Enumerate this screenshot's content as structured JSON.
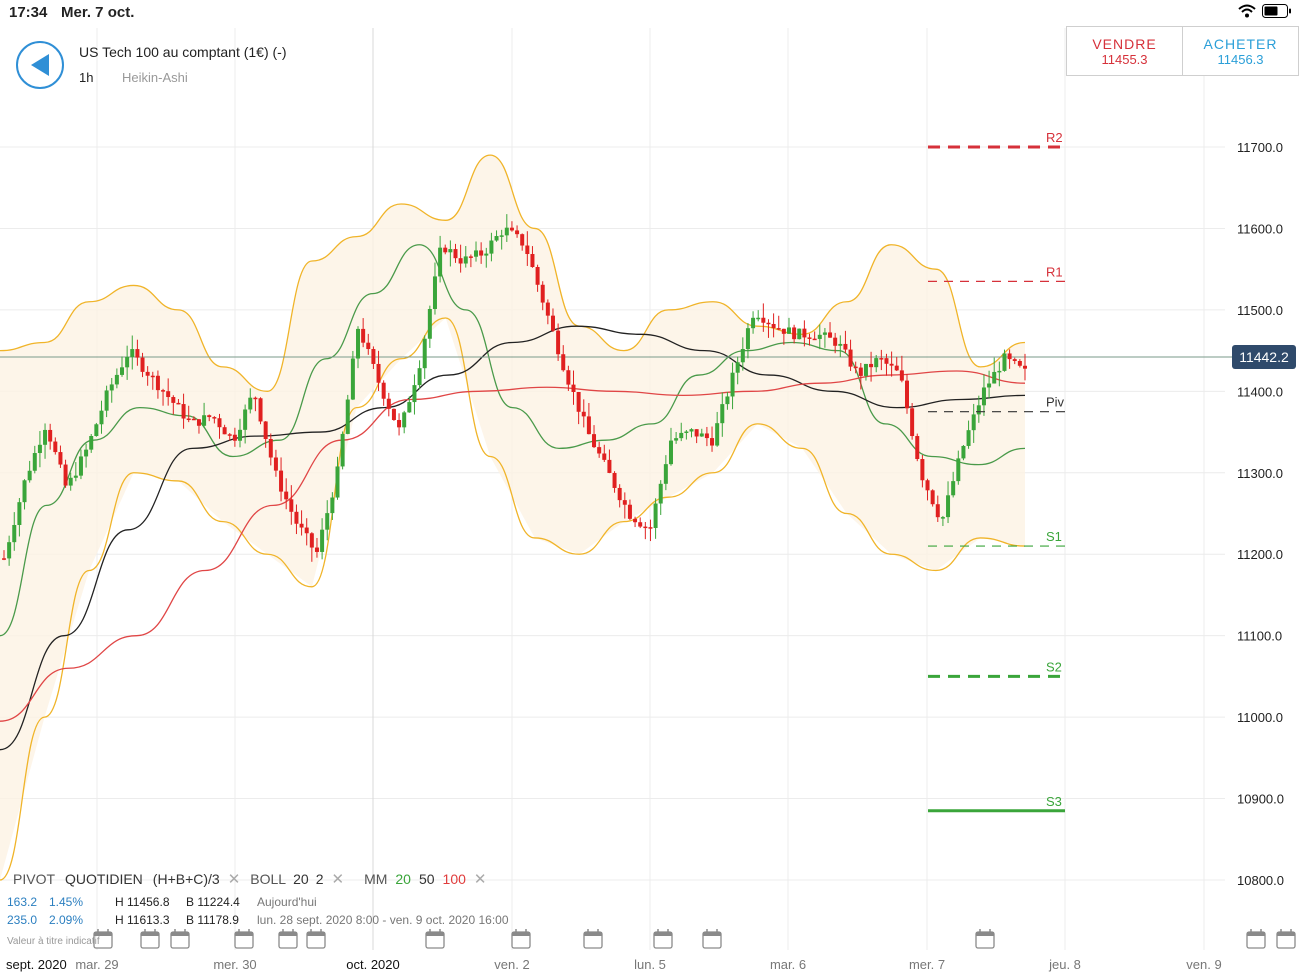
{
  "status": {
    "time": "17:34",
    "date": "Mer. 7 oct."
  },
  "instrument": {
    "title": "US Tech 100 au comptant (1€) (-)",
    "timeframe": "1h",
    "chart_type": "Heikin-Ashi"
  },
  "trade": {
    "sell_label": "VENDRE",
    "sell_price": "11455.3",
    "buy_label": "ACHETER",
    "buy_price": "11456.3"
  },
  "current_price": "11442.2",
  "pivot_levels": [
    {
      "label": "R2",
      "value": 11700,
      "color": "#d6313a",
      "style": "bold-dash"
    },
    {
      "label": "R1",
      "value": 11535,
      "color": "#d6313a",
      "style": "dash"
    },
    {
      "label": "Piv",
      "value": 11375,
      "color": "#333333",
      "style": "dash"
    },
    {
      "label": "S1",
      "value": 11210,
      "color": "#3aa53a",
      "style": "dash"
    },
    {
      "label": "S2",
      "value": 11050,
      "color": "#3aa53a",
      "style": "bold-dash"
    },
    {
      "label": "S3",
      "value": 10885,
      "color": "#3aa53a",
      "style": "solid"
    }
  ],
  "legend": {
    "pivot": "PIVOT",
    "pivot_type": "QUOTIDIEN",
    "pivot_formula": "(H+B+C)/3",
    "boll": "BOLL",
    "boll_period": "20",
    "boll_dev": "2",
    "mm": "MM",
    "mm20": "20",
    "mm50": "50",
    "mm100": "100",
    "row2": {
      "pts": "163.2",
      "pct": "1.45%",
      "high": "H 11456.8",
      "low": "B 11224.4",
      "period": "Aujourd'hui"
    },
    "row3": {
      "pts": "235.0",
      "pct": "2.09%",
      "high": "H 11613.3",
      "low": "B 11178.9",
      "period": "lun. 28 sept. 2020 8:00 - ven. 9 oct. 2020 16:00"
    }
  },
  "notice": "Valeur à titre indicatif",
  "colors": {
    "up": "#3aa53a",
    "down": "#e02020",
    "boll": "#f0b429",
    "mm20": "#4a9a4a",
    "mm50": "#222222",
    "mm100": "#e04646",
    "accent": "#2f8fd6"
  },
  "chart_data": {
    "type": "candlestick",
    "y_ticks": [
      "11700.0",
      "11600.0",
      "11500.0",
      "11400.0",
      "11300.0",
      "11200.0",
      "11100.0",
      "11000.0",
      "10900.0",
      "10800.0"
    ],
    "y_range": [
      10770,
      11830
    ],
    "x_labels": [
      "sept. 2020",
      "mar. 29",
      "mer. 30",
      "oct. 2020",
      "ven. 2",
      "lun. 5",
      "mar. 6",
      "mer. 7",
      "jeu. 8",
      "ven. 9"
    ],
    "close_path": [
      11195,
      11290,
      11360,
      11280,
      11330,
      11400,
      11450,
      11420,
      11390,
      11360,
      11370,
      11340,
      11400,
      11300,
      11240,
      11200,
      11300,
      11480,
      11410,
      11350,
      11440,
      11580,
      11560,
      11570,
      11600,
      11580,
      11500,
      11420,
      11350,
      11300,
      11250,
      11230,
      11340,
      11350,
      11340,
      11420,
      11500,
      11480,
      11470,
      11470,
      11460,
      11420,
      11440,
      11420,
      11300,
      11240,
      11330,
      11400,
      11440,
      11423
    ],
    "series_lines": {
      "bb_upper": [
        11450,
        11460,
        11510,
        11530,
        11500,
        11430,
        11400,
        11560,
        11590,
        11630,
        11610,
        11690,
        11600,
        11480,
        11450,
        11500,
        11510,
        11480,
        11470,
        11510,
        11580,
        11550,
        11430,
        11460
      ],
      "bb_lower": [
        10800,
        11000,
        11180,
        11300,
        11290,
        11240,
        11200,
        11160,
        11380,
        11440,
        11490,
        11320,
        11220,
        11200,
        11240,
        11270,
        11300,
        11360,
        11330,
        11250,
        11200,
        11180,
        11220,
        11210
      ],
      "mm20": [
        11100,
        11260,
        11340,
        11380,
        11370,
        11320,
        11340,
        11440,
        11520,
        11580,
        11500,
        11380,
        11330,
        11340,
        11360,
        11420,
        11450,
        11460,
        11450,
        11360,
        11320,
        11310,
        11330
      ],
      "mm50": [
        10960,
        11100,
        11230,
        11330,
        11345,
        11350,
        11380,
        11420,
        11460,
        11480,
        11470,
        11450,
        11420,
        11400,
        11380,
        11390,
        11395
      ],
      "mm100": [
        10995,
        11060,
        11100,
        11180,
        11260,
        11340,
        11390,
        11400,
        11405,
        11400,
        11395,
        11400,
        11410,
        11420,
        11425,
        11410
      ]
    }
  }
}
